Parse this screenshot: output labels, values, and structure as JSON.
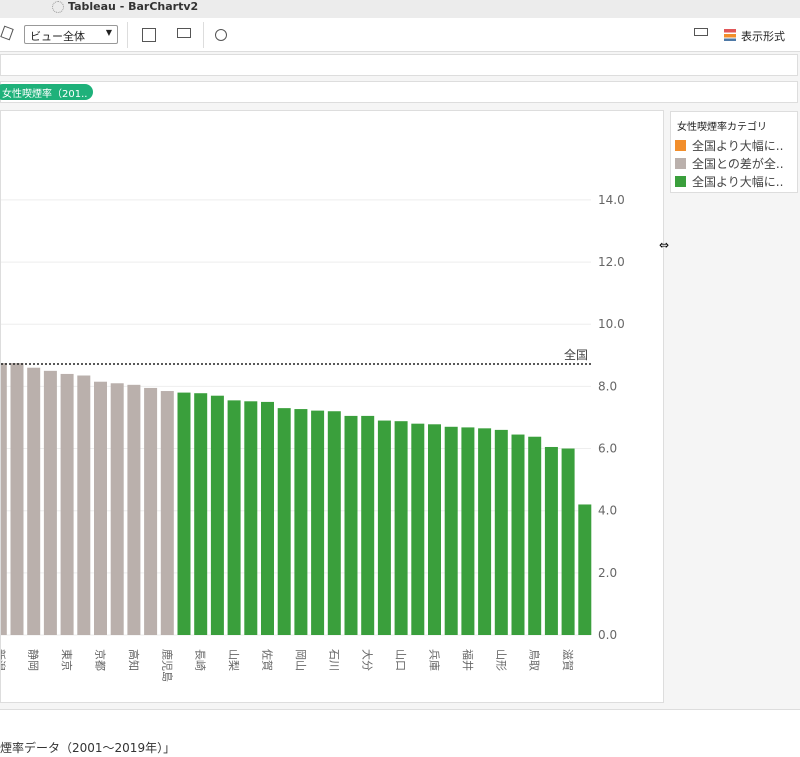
{
  "ui": {
    "window_title": "Tableau - BarChartv2",
    "view_dropdown": "ビュー全体",
    "format_button": "表示形式",
    "filter_pill": "女性喫煙率（201..",
    "caption": "煙率データ（2001〜2019年）」"
  },
  "chart_data": {
    "type": "bar",
    "categories": [
      "新潟",
      null,
      "静岡",
      null,
      "東京",
      null,
      "京都",
      null,
      "高知",
      null,
      "鹿児島",
      null,
      "長崎",
      null,
      "山梨",
      null,
      "佐賀",
      null,
      "岡山",
      null,
      "石川",
      null,
      "大分",
      null,
      "山口",
      null,
      "兵庫",
      null,
      "福井",
      null,
      "山形",
      null,
      "鳥取",
      null,
      "滋賀",
      null
    ],
    "legend_title": "女性喫煙率カテゴリ",
    "series": [
      {
        "name": "全国より大幅に..",
        "color": "#f28e2b",
        "values": [
          null,
          null,
          null,
          null,
          null,
          null,
          null,
          null,
          null,
          null,
          null,
          null,
          null,
          null,
          null,
          null,
          null,
          null,
          null,
          null,
          null,
          null,
          null,
          null,
          null,
          null,
          null,
          null,
          null,
          null,
          null,
          null,
          null,
          null,
          null,
          null
        ]
      },
      {
        "name": "全国との差が全..",
        "color": "#bab0ac",
        "values": [
          8.75,
          8.75,
          8.6,
          8.5,
          8.4,
          8.35,
          8.15,
          8.1,
          8.05,
          7.95,
          7.85,
          null,
          null,
          null,
          null,
          null,
          null,
          null,
          null,
          null,
          null,
          null,
          null,
          null,
          null,
          null,
          null,
          null,
          null,
          null,
          null,
          null,
          null,
          null,
          null,
          null
        ]
      },
      {
        "name": "全国より大幅に..",
        "color": "#3a9f3c",
        "values": [
          null,
          null,
          null,
          null,
          null,
          null,
          null,
          null,
          null,
          null,
          null,
          7.8,
          7.78,
          7.7,
          7.55,
          7.52,
          7.5,
          7.3,
          7.27,
          7.22,
          7.2,
          7.05,
          7.05,
          6.9,
          6.88,
          6.8,
          6.78,
          6.7,
          6.68,
          6.65,
          6.6,
          6.45,
          6.38,
          6.05,
          6.0,
          4.2
        ]
      }
    ],
    "reference_line": {
      "label": "全国",
      "value": 8.72
    },
    "ylim": [
      0,
      16.7
    ],
    "yticks": [
      {
        "value": 0,
        "label": "0.0"
      },
      {
        "value": 2,
        "label": "2.0"
      },
      {
        "value": 4,
        "label": "4.0"
      },
      {
        "value": 6,
        "label": "6.0"
      },
      {
        "value": 8,
        "label": "8.0"
      },
      {
        "value": 10,
        "label": "10.0"
      },
      {
        "value": 12,
        "label": "12.0"
      },
      {
        "value": 14,
        "label": "14.0"
      }
    ],
    "grid": true
  }
}
